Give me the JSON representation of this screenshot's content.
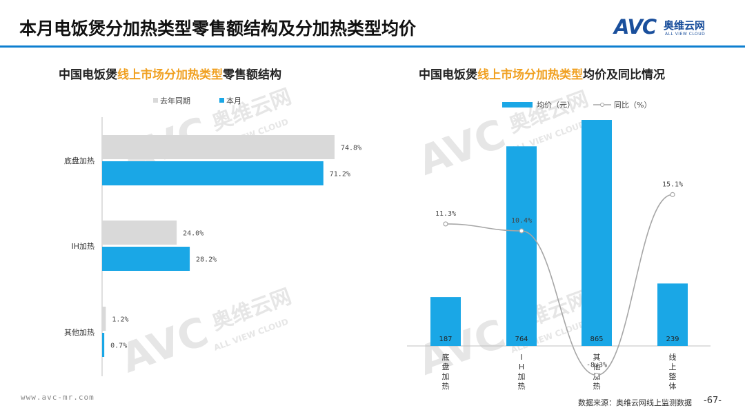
{
  "header": {
    "title": "本月电饭煲分加热类型零售额结构及分加热类型均价",
    "logo_main": "AVC",
    "logo_cn": "奥维云网",
    "logo_en": "ALL VIEW CLOUD"
  },
  "left_chart_title": {
    "prefix": "中国电饭煲",
    "highlight": "线上市场分加热类型",
    "suffix": "零售额结构"
  },
  "right_chart_title": {
    "prefix": "中国电饭煲",
    "highlight": "线上市场分加热类型",
    "suffix": "均价及同比情况"
  },
  "watermark": {
    "logo": "AVC",
    "cn": "奥维云网",
    "en": "ALL VIEW CLOUD"
  },
  "footer": {
    "url": "www.avc-mr.com",
    "source": "数据来源：奥维云网线上监测数据",
    "page": "-67-"
  },
  "colors": {
    "current": "#1aa7e6",
    "last_year": "#d9d9d9",
    "line": "#a6a6a6",
    "accent": "#f0a020",
    "rule": "#0e7fd0"
  },
  "chart_data": [
    {
      "type": "bar",
      "orientation": "horizontal",
      "categories": [
        "底盘加热",
        "IH加热",
        "其他加热"
      ],
      "series": [
        {
          "name": "去年同期",
          "values": [
            74.8,
            24.0,
            1.2
          ],
          "labels": [
            "74.8%",
            "24.0%",
            "1.2%"
          ]
        },
        {
          "name": "本月",
          "values": [
            71.2,
            28.2,
            0.7
          ],
          "labels": [
            "71.2%",
            "28.2%",
            "0.7%"
          ]
        }
      ],
      "legend_position": "top",
      "unit": "%"
    },
    {
      "type": "bar",
      "secondary_type": "line",
      "categories": [
        "底盘加热",
        "IH加热",
        "其他加热",
        "线上整体"
      ],
      "series": [
        {
          "name": "均价（元）",
          "type": "bar",
          "values": [
            187,
            764,
            865,
            239
          ],
          "labels": [
            "187",
            "764",
            "865",
            "239"
          ]
        },
        {
          "name": "同比（%）",
          "type": "line",
          "values": [
            11.3,
            10.4,
            -8.3,
            15.1
          ],
          "labels": [
            "11.3%",
            "10.4%",
            "-8.3%",
            "15.1%"
          ]
        }
      ],
      "legend_position": "top"
    }
  ]
}
